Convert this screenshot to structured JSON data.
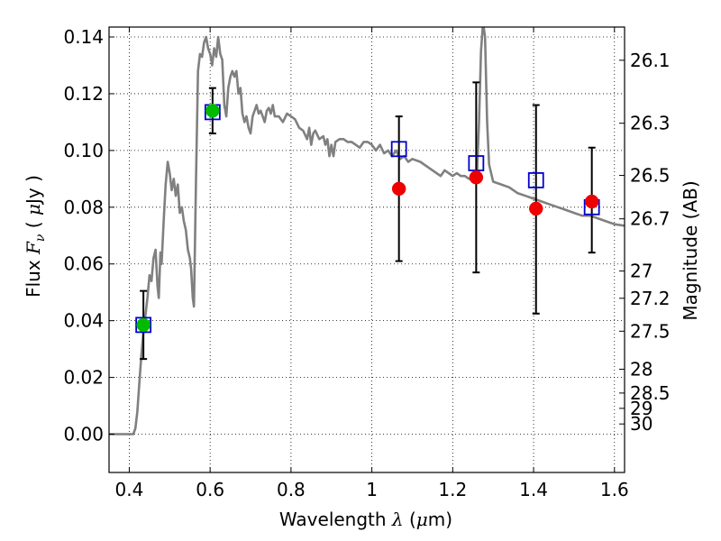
{
  "chart_data": {
    "type": "scatter",
    "xlabel": {
      "prefix": "Wavelength  ",
      "symbol": "λ",
      "unit_open": " (",
      "unit_mu": "μ",
      "unit_rest": "m)"
    },
    "ylabel": {
      "prefix": "Flux  ",
      "symbol": "F",
      "sub": "ν",
      "unit_open": "  (  ",
      "unit_mu": "μ",
      "unit_rest": "Jy  )"
    },
    "y2label": "Magnitude (AB)",
    "xlim": [
      0.35,
      1.625
    ],
    "ylim": [
      -0.0135,
      0.1435
    ],
    "xticks": [
      0.4,
      0.6,
      0.8,
      1.0,
      1.2,
      1.4,
      1.6
    ],
    "xtick_labels": [
      "0.4",
      "0.6",
      "0.8",
      "1",
      "1.2",
      "1.4",
      "1.6"
    ],
    "yticks": [
      0.0,
      0.02,
      0.04,
      0.06,
      0.08,
      0.1,
      0.12,
      0.14
    ],
    "ytick_labels": [
      "0.00",
      "0.02",
      "0.04",
      "0.06",
      "0.08",
      "0.10",
      "0.12",
      "0.14"
    ],
    "magnitude_ticks": [
      {
        "label": "26.1",
        "flux": 0.1318
      },
      {
        "label": "26.3",
        "flux": 0.1096
      },
      {
        "label": "26.5",
        "flux": 0.0912
      },
      {
        "label": "26.7",
        "flux": 0.0759
      },
      {
        "label": "27",
        "flux": 0.0575
      },
      {
        "label": "27.2",
        "flux": 0.0479
      },
      {
        "label": "27.5",
        "flux": 0.0363
      },
      {
        "label": "28",
        "flux": 0.0229
      },
      {
        "label": "28.5",
        "flux": 0.0145
      },
      {
        "label": "29",
        "flux": 0.0091
      },
      {
        "label": "30",
        "flux": 0.0036
      }
    ],
    "grid": true,
    "colors": {
      "model": "#808080",
      "green": "#00bb00",
      "red": "#ee0000",
      "blue": "#0000cc",
      "errorbar": "#000000"
    },
    "series": [
      {
        "kind": "model_sed",
        "points": [
          [
            0.35,
            0.0
          ],
          [
            0.41,
            0.0
          ],
          [
            0.415,
            0.002
          ],
          [
            0.42,
            0.008
          ],
          [
            0.425,
            0.018
          ],
          [
            0.43,
            0.028
          ],
          [
            0.435,
            0.036
          ],
          [
            0.44,
            0.042
          ],
          [
            0.445,
            0.048
          ],
          [
            0.45,
            0.056
          ],
          [
            0.455,
            0.054
          ],
          [
            0.46,
            0.062
          ],
          [
            0.465,
            0.065
          ],
          [
            0.47,
            0.052
          ],
          [
            0.473,
            0.048
          ],
          [
            0.477,
            0.064
          ],
          [
            0.48,
            0.06
          ],
          [
            0.485,
            0.075
          ],
          [
            0.49,
            0.088
          ],
          [
            0.495,
            0.096
          ],
          [
            0.5,
            0.092
          ],
          [
            0.505,
            0.086
          ],
          [
            0.51,
            0.09
          ],
          [
            0.515,
            0.084
          ],
          [
            0.52,
            0.088
          ],
          [
            0.525,
            0.078
          ],
          [
            0.53,
            0.08
          ],
          [
            0.535,
            0.075
          ],
          [
            0.54,
            0.072
          ],
          [
            0.545,
            0.065
          ],
          [
            0.55,
            0.062
          ],
          [
            0.553,
            0.058
          ],
          [
            0.557,
            0.048
          ],
          [
            0.56,
            0.045
          ],
          [
            0.565,
            0.09
          ],
          [
            0.57,
            0.128
          ],
          [
            0.575,
            0.134
          ],
          [
            0.58,
            0.133
          ],
          [
            0.585,
            0.138
          ],
          [
            0.59,
            0.14
          ],
          [
            0.595,
            0.136
          ],
          [
            0.6,
            0.134
          ],
          [
            0.605,
            0.13
          ],
          [
            0.61,
            0.136
          ],
          [
            0.615,
            0.133
          ],
          [
            0.62,
            0.14
          ],
          [
            0.625,
            0.134
          ],
          [
            0.63,
            0.132
          ],
          [
            0.635,
            0.116
          ],
          [
            0.64,
            0.112
          ],
          [
            0.645,
            0.122
          ],
          [
            0.65,
            0.126
          ],
          [
            0.655,
            0.128
          ],
          [
            0.66,
            0.126
          ],
          [
            0.665,
            0.128
          ],
          [
            0.67,
            0.12
          ],
          [
            0.675,
            0.122
          ],
          [
            0.68,
            0.113
          ],
          [
            0.685,
            0.11
          ],
          [
            0.69,
            0.112
          ],
          [
            0.695,
            0.108
          ],
          [
            0.7,
            0.106
          ],
          [
            0.705,
            0.112
          ],
          [
            0.71,
            0.114
          ],
          [
            0.715,
            0.116
          ],
          [
            0.72,
            0.113
          ],
          [
            0.725,
            0.114
          ],
          [
            0.73,
            0.112
          ],
          [
            0.735,
            0.11
          ],
          [
            0.74,
            0.114
          ],
          [
            0.745,
            0.115
          ],
          [
            0.75,
            0.113
          ],
          [
            0.755,
            0.116
          ],
          [
            0.76,
            0.112
          ],
          [
            0.77,
            0.112
          ],
          [
            0.78,
            0.11
          ],
          [
            0.79,
            0.113
          ],
          [
            0.8,
            0.112
          ],
          [
            0.81,
            0.111
          ],
          [
            0.82,
            0.108
          ],
          [
            0.83,
            0.107
          ],
          [
            0.84,
            0.104
          ],
          [
            0.845,
            0.108
          ],
          [
            0.85,
            0.102
          ],
          [
            0.855,
            0.106
          ],
          [
            0.86,
            0.107
          ],
          [
            0.87,
            0.104
          ],
          [
            0.88,
            0.105
          ],
          [
            0.885,
            0.102
          ],
          [
            0.89,
            0.104
          ],
          [
            0.895,
            0.098
          ],
          [
            0.9,
            0.102
          ],
          [
            0.905,
            0.098
          ],
          [
            0.91,
            0.103
          ],
          [
            0.92,
            0.104
          ],
          [
            0.93,
            0.104
          ],
          [
            0.94,
            0.103
          ],
          [
            0.95,
            0.103
          ],
          [
            0.96,
            0.102
          ],
          [
            0.97,
            0.101
          ],
          [
            0.98,
            0.103
          ],
          [
            0.99,
            0.103
          ],
          [
            1.0,
            0.102
          ],
          [
            1.01,
            0.1
          ],
          [
            1.02,
            0.102
          ],
          [
            1.03,
            0.099
          ],
          [
            1.04,
            0.1
          ],
          [
            1.05,
            0.098
          ],
          [
            1.06,
            0.1
          ],
          [
            1.07,
            0.097
          ],
          [
            1.08,
            0.098
          ],
          [
            1.09,
            0.096
          ],
          [
            1.1,
            0.097
          ],
          [
            1.12,
            0.096
          ],
          [
            1.14,
            0.094
          ],
          [
            1.16,
            0.092
          ],
          [
            1.17,
            0.091
          ],
          [
            1.18,
            0.093
          ],
          [
            1.19,
            0.092
          ],
          [
            1.2,
            0.091
          ],
          [
            1.21,
            0.092
          ],
          [
            1.22,
            0.091
          ],
          [
            1.23,
            0.091
          ],
          [
            1.24,
            0.09
          ],
          [
            1.25,
            0.09
          ],
          [
            1.26,
            0.092
          ],
          [
            1.265,
            0.11
          ],
          [
            1.27,
            0.135
          ],
          [
            1.275,
            0.145
          ],
          [
            1.28,
            0.14
          ],
          [
            1.285,
            0.11
          ],
          [
            1.29,
            0.095
          ],
          [
            1.3,
            0.089
          ],
          [
            1.32,
            0.088
          ],
          [
            1.34,
            0.087
          ],
          [
            1.36,
            0.085
          ],
          [
            1.38,
            0.084
          ],
          [
            1.4,
            0.083
          ],
          [
            1.42,
            0.082
          ],
          [
            1.44,
            0.081
          ],
          [
            1.46,
            0.08
          ],
          [
            1.48,
            0.079
          ],
          [
            1.5,
            0.078
          ],
          [
            1.52,
            0.077
          ],
          [
            1.54,
            0.077
          ],
          [
            1.56,
            0.076
          ],
          [
            1.58,
            0.075
          ],
          [
            1.6,
            0.074
          ],
          [
            1.625,
            0.0735
          ]
        ]
      },
      {
        "kind": "errorbars",
        "points": [
          {
            "x": 0.435,
            "lo": 0.0265,
            "hi": 0.0505
          },
          {
            "x": 0.606,
            "lo": 0.106,
            "hi": 0.122
          },
          {
            "x": 1.067,
            "lo": 0.061,
            "hi": 0.112
          },
          {
            "x": 1.258,
            "lo": 0.057,
            "hi": 0.124
          },
          {
            "x": 1.406,
            "lo": 0.0425,
            "hi": 0.116
          },
          {
            "x": 1.544,
            "lo": 0.064,
            "hi": 0.101
          }
        ]
      },
      {
        "kind": "open_squares",
        "points": [
          {
            "x": 0.435,
            "y": 0.0385
          },
          {
            "x": 0.606,
            "y": 0.1135
          },
          {
            "x": 1.067,
            "y": 0.1005
          },
          {
            "x": 1.258,
            "y": 0.0955
          },
          {
            "x": 1.406,
            "y": 0.0895
          },
          {
            "x": 1.544,
            "y": 0.08
          }
        ]
      },
      {
        "kind": "green_dots",
        "points": [
          {
            "x": 0.435,
            "y": 0.0385
          },
          {
            "x": 0.606,
            "y": 0.114
          }
        ]
      },
      {
        "kind": "red_dots",
        "points": [
          {
            "x": 1.067,
            "y": 0.0865
          },
          {
            "x": 1.258,
            "y": 0.0905
          },
          {
            "x": 1.406,
            "y": 0.0795
          },
          {
            "x": 1.544,
            "y": 0.082
          }
        ]
      }
    ]
  }
}
